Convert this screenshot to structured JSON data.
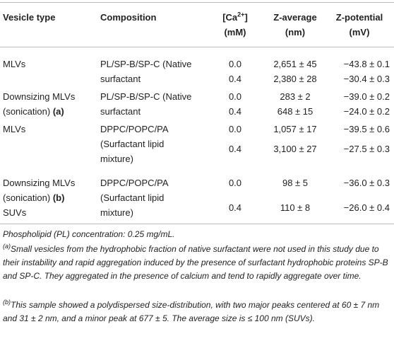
{
  "header": {
    "vesicle_type": "Vesicle type",
    "composition": "Composition",
    "ca_line1": "[Ca",
    "ca_sup": "2+",
    "ca_line1_end": "]",
    "ca_line2": "(mM)",
    "z_avg_line1": "Z-average",
    "z_avg_line2": "(nm)",
    "z_pot_line1": "Z-potential",
    "z_pot_line2": "(mV)"
  },
  "rows": [
    {
      "vesicle1": "MLVs",
      "vesicle2": "",
      "vesicle2_bold": "",
      "comp1": "PL/SP-B/SP-C (Native",
      "comp2": "surfactant",
      "comp3": "",
      "ca": [
        "0.0",
        "0.4"
      ],
      "zavg": [
        "2,651 ± 45",
        "2,380 ± 28"
      ],
      "zpot": [
        "−43.8 ± 0.1",
        "−30.4 ± 0.3"
      ]
    },
    {
      "vesicle1": "Downsizing MLVs",
      "vesicle2": "(sonication) ",
      "vesicle2_bold": "(a)",
      "comp1": "PL/SP-B/SP-C (Native",
      "comp2": "surfactant",
      "comp3": "",
      "ca": [
        "0.0",
        "0.4"
      ],
      "zavg": [
        "283 ± 2",
        "648 ± 15"
      ],
      "zpot": [
        "−39.0 ± 0.2",
        "−24.0 ± 0.2"
      ]
    },
    {
      "vesicle1": "MLVs",
      "vesicle2": "",
      "vesicle2_bold": "",
      "comp1": "DPPC/POPC/PA",
      "comp2": "(Surfactant lipid",
      "comp3": "mixture)",
      "ca": [
        "0.0",
        "0.4"
      ],
      "zavg": [
        "1,057 ± 17",
        "3,100 ± 27"
      ],
      "zpot": [
        "−39.5 ± 0.6",
        "−27.5 ± 0.3"
      ]
    },
    {
      "vesicle1": "Downsizing MLVs",
      "vesicle2": "(sonication) ",
      "vesicle2_bold": "(b)",
      "vesicle3": "SUVs",
      "comp1": "DPPC/POPC/PA",
      "comp2": "(Surfactant lipid",
      "comp3": "mixture)",
      "ca": [
        "0.0",
        "0.4"
      ],
      "zavg": [
        "98 ± 5",
        "110 ± 8"
      ],
      "zpot": [
        "−36.0 ± 0.3",
        "−26.0 ± 0.4"
      ]
    }
  ],
  "footnotes": {
    "pl": "Phospholipid (PL) concentration: 0.25 mg/mL.",
    "a_mark": "(a)",
    "a_text": "Small vesicles from the hydrophobic fraction of native surfactant were not used in this study due to their instability and rapid aggregation induced by the presence of surfactant hydrophobic proteins SP-B and SP-C. They aggregated in the presence of calcium and tend to rapidly aggregate over time.",
    "b_mark": "(b)",
    "b_text": "This sample showed a polydispersed size-distribution, with two major peaks centered at 60 ± 7 nm and 31 ± 2 nm, and a minor peak at 677 ± 5. The average size is ≤ 100 nm (SUVs)."
  }
}
